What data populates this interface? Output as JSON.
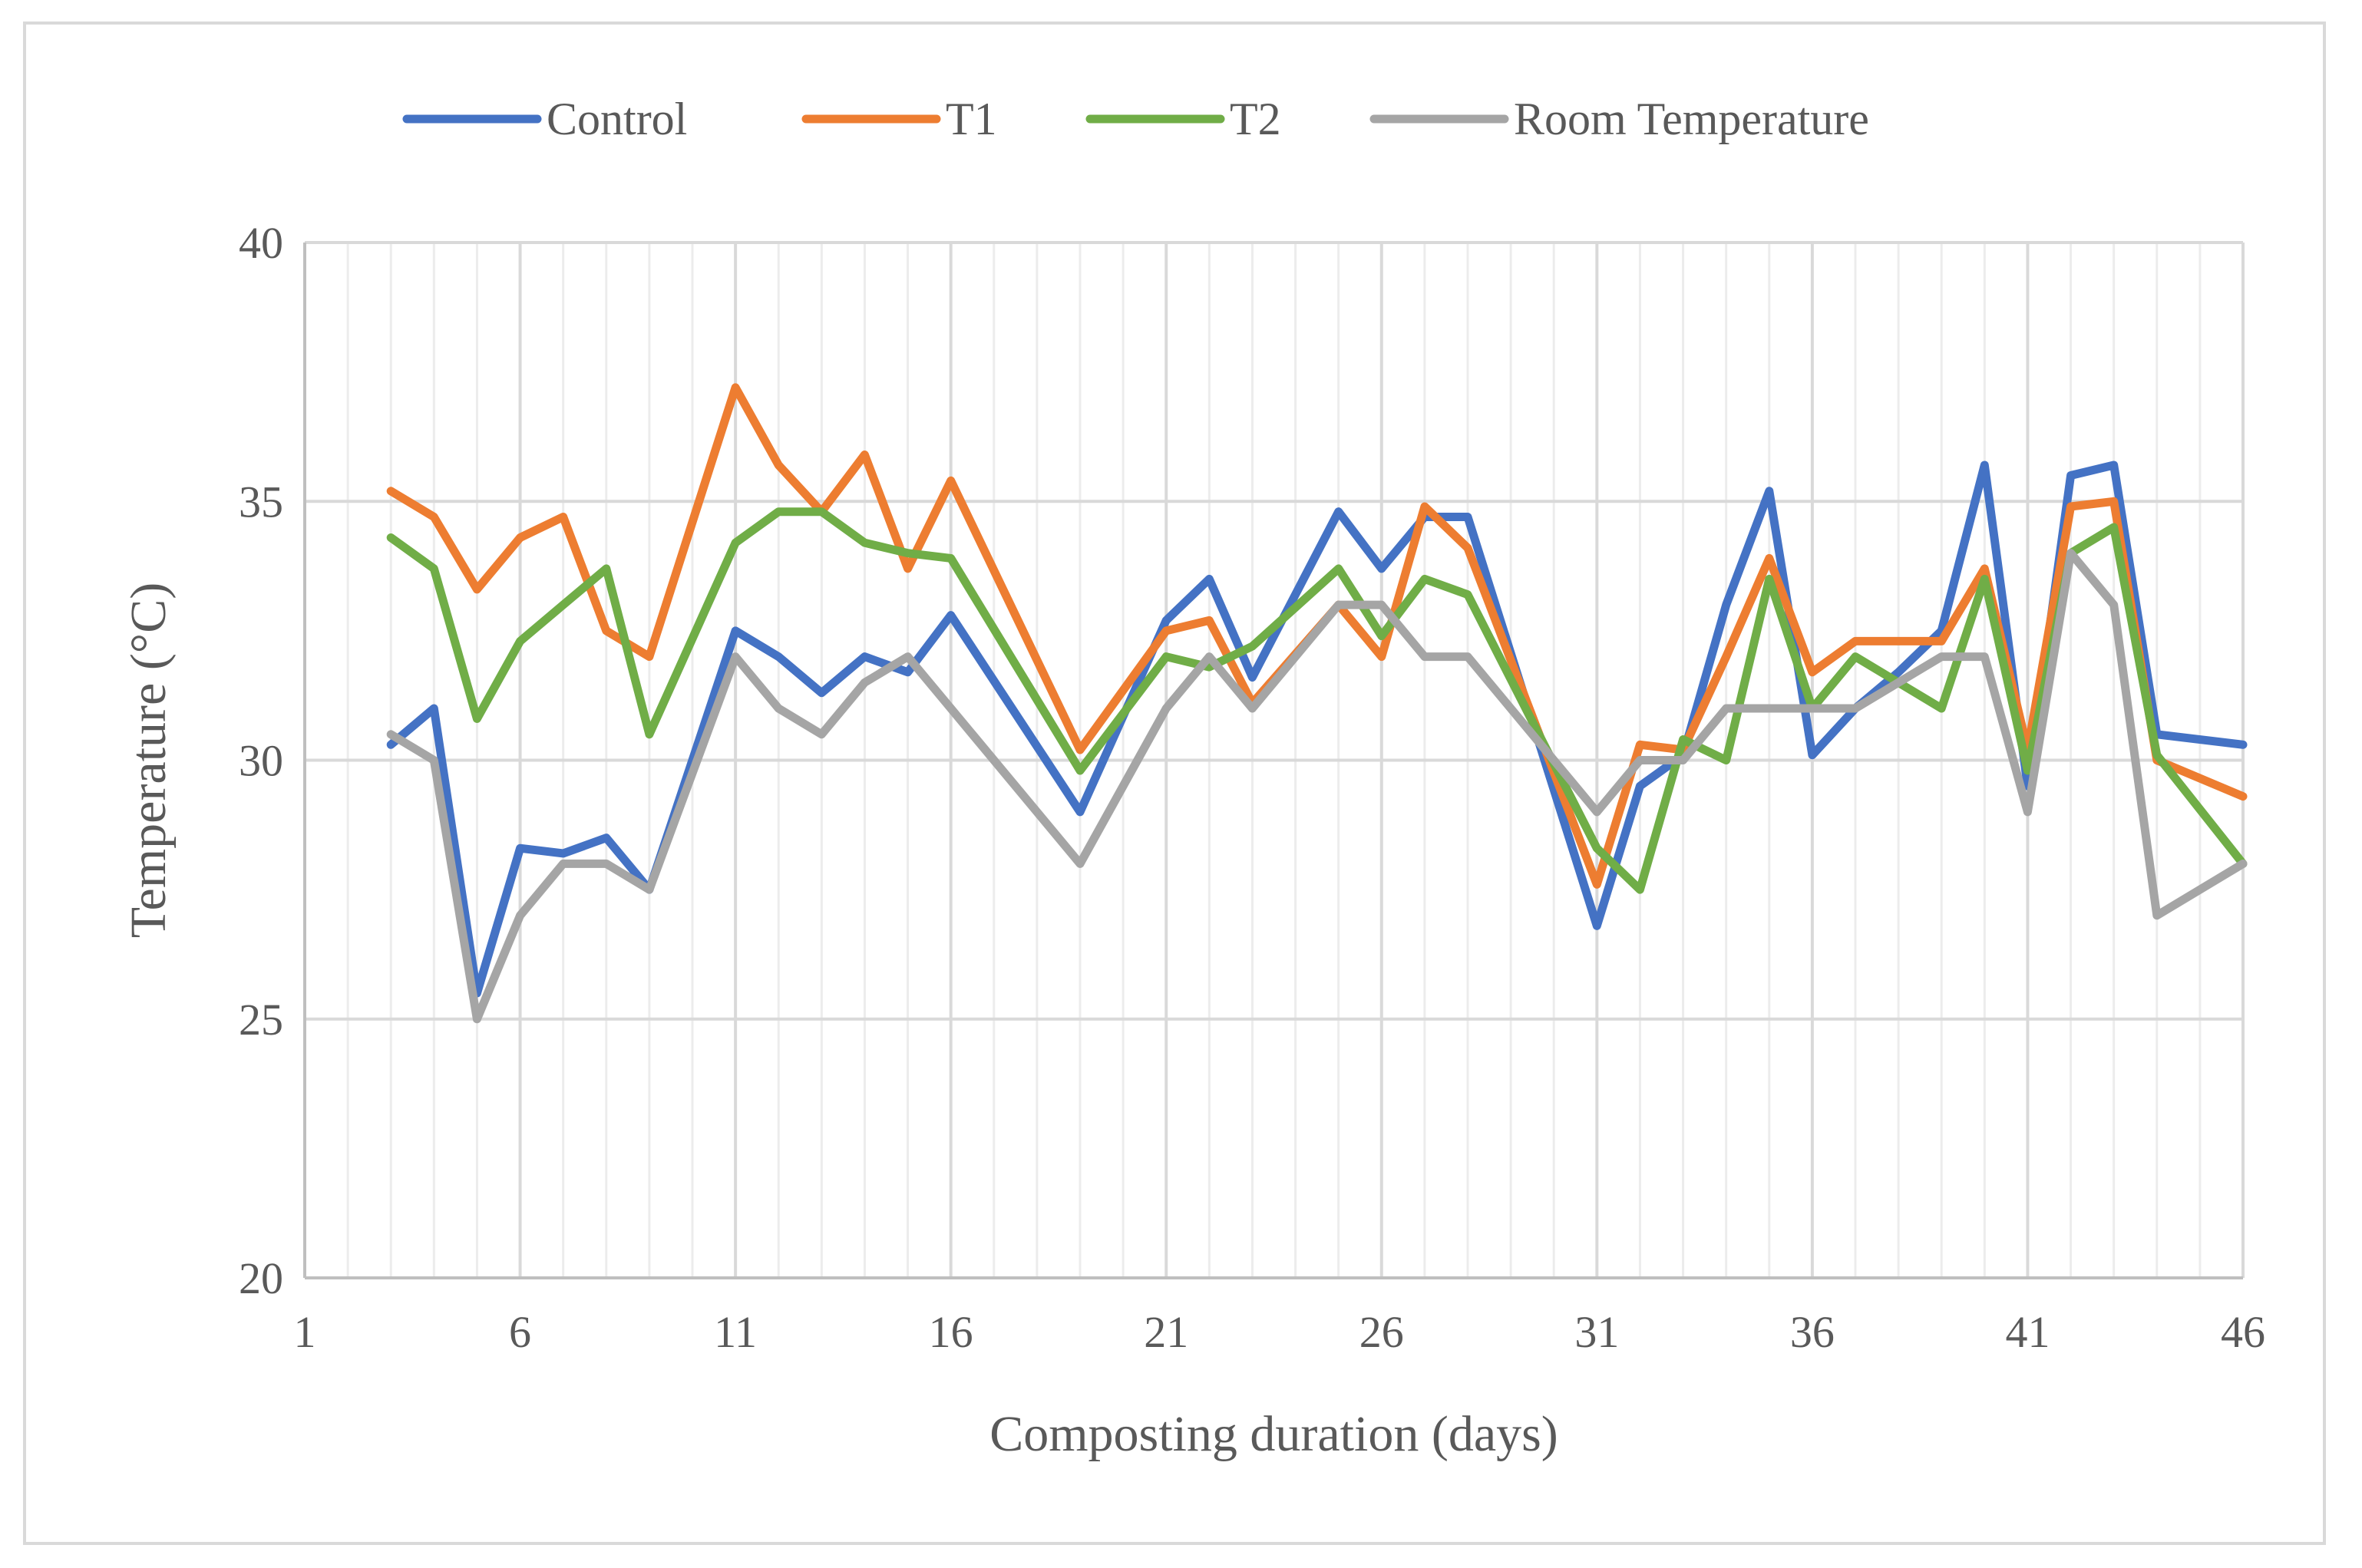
{
  "chart_data": {
    "type": "line",
    "title": "",
    "xlabel": "Composting duration (days)",
    "ylabel": "Temperature (°C)",
    "xlim": [
      1,
      46
    ],
    "ylim": [
      20,
      40
    ],
    "x_ticks": [
      1,
      6,
      11,
      16,
      21,
      26,
      31,
      36,
      41,
      46
    ],
    "x_tick_labels": [
      "1",
      "6",
      "11",
      "16",
      "21",
      "26",
      "31",
      "36",
      "41",
      "46"
    ],
    "y_ticks": [
      20,
      25,
      30,
      35,
      40
    ],
    "y_tick_labels": [
      "20",
      "25",
      "30",
      "35",
      "40"
    ],
    "grid": true,
    "legend_position": "top",
    "series": [
      {
        "name": "Control",
        "color": "#4472c4",
        "x": [
          3,
          4,
          5,
          6,
          7,
          8,
          9,
          11,
          12,
          13,
          14,
          15,
          16,
          19,
          21,
          22,
          23,
          25,
          26,
          27,
          28,
          31,
          32,
          33,
          34,
          35,
          36,
          37,
          38,
          39,
          40,
          41,
          42,
          43,
          44,
          46
        ],
        "y": [
          30.3,
          31,
          25.5,
          28.3,
          28.2,
          28.5,
          27.5,
          32.5,
          32,
          31.3,
          32,
          31.7,
          32.8,
          29,
          32.7,
          33.5,
          31.6,
          34.8,
          33.7,
          34.7,
          34.7,
          26.8,
          29.5,
          30.1,
          33,
          35.2,
          30.1,
          31,
          31.7,
          32.5,
          35.7,
          29.5,
          35.5,
          35.7,
          30.5,
          30.3
        ]
      },
      {
        "name": "T1",
        "color": "#ed7d31",
        "x": [
          3,
          4,
          5,
          6,
          7,
          8,
          9,
          11,
          12,
          13,
          14,
          15,
          16,
          19,
          21,
          22,
          23,
          25,
          26,
          27,
          28,
          31,
          32,
          33,
          34,
          35,
          36,
          37,
          38,
          39,
          40,
          41,
          42,
          43,
          44,
          46
        ],
        "y": [
          35.2,
          34.7,
          33.3,
          34.3,
          34.7,
          32.5,
          32,
          37.2,
          35.7,
          34.8,
          35.9,
          33.7,
          35.4,
          30.2,
          32.5,
          32.7,
          31.1,
          33,
          32,
          34.9,
          34.1,
          27.6,
          30.3,
          30.2,
          32,
          33.9,
          31.7,
          32.3,
          32.3,
          32.3,
          33.7,
          30.2,
          34.9,
          35,
          30,
          29.3
        ]
      },
      {
        "name": "T2",
        "color": "#70ad47",
        "x": [
          3,
          4,
          5,
          6,
          7,
          8,
          9,
          11,
          12,
          13,
          14,
          15,
          16,
          19,
          21,
          22,
          23,
          25,
          26,
          27,
          28,
          31,
          32,
          33,
          34,
          35,
          36,
          37,
          38,
          39,
          40,
          41,
          42,
          43,
          44,
          46
        ],
        "y": [
          34.3,
          33.7,
          30.8,
          32.3,
          33,
          33.7,
          30.5,
          34.2,
          34.8,
          34.8,
          34.2,
          34,
          33.9,
          29.8,
          32,
          31.8,
          32.2,
          33.7,
          32.4,
          33.5,
          33.2,
          28.3,
          27.5,
          30.4,
          30,
          33.5,
          31,
          32,
          31.5,
          31,
          33.5,
          29.8,
          34,
          34.5,
          30.1,
          28
        ]
      },
      {
        "name": "Room Temperature",
        "color": "#a5a5a5",
        "x": [
          3,
          4,
          5,
          6,
          7,
          8,
          9,
          11,
          12,
          13,
          14,
          15,
          16,
          19,
          21,
          22,
          23,
          25,
          26,
          27,
          28,
          31,
          32,
          33,
          34,
          35,
          36,
          37,
          38,
          39,
          40,
          41,
          42,
          43,
          44,
          46
        ],
        "y": [
          30.5,
          30,
          25,
          27,
          28,
          28,
          27.5,
          32,
          31,
          30.5,
          31.5,
          32,
          31,
          28,
          31,
          32,
          31,
          33,
          33,
          32,
          32,
          29,
          30,
          30,
          31,
          31,
          31,
          31,
          31.5,
          32,
          32,
          29,
          34,
          33,
          27,
          28
        ]
      }
    ]
  }
}
